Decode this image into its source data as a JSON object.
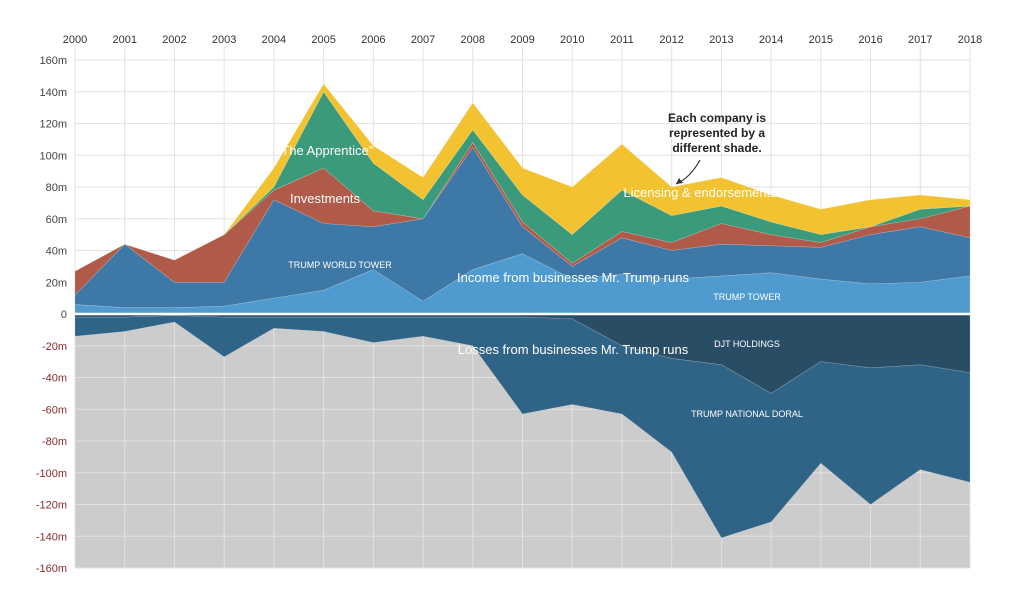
{
  "chart_data": {
    "type": "area",
    "categories": [
      "2000",
      "2001",
      "2002",
      "2003",
      "2004",
      "2005",
      "2006",
      "2007",
      "2008",
      "2009",
      "2010",
      "2011",
      "2012",
      "2013",
      "2014",
      "2015",
      "2016",
      "2017",
      "2018"
    ],
    "ylim": [
      -160,
      160
    ],
    "yticks": [
      {
        "value": 160,
        "label": "160m"
      },
      {
        "value": 140,
        "label": "140m"
      },
      {
        "value": 120,
        "label": "120m"
      },
      {
        "value": 100,
        "label": "100m"
      },
      {
        "value": 80,
        "label": "80m"
      },
      {
        "value": 60,
        "label": "60m"
      },
      {
        "value": 40,
        "label": "40m"
      },
      {
        "value": 20,
        "label": "20m"
      },
      0,
      {
        "value": -20,
        "label": "-20m"
      },
      {
        "value": -40,
        "label": "-40m"
      },
      {
        "value": -60,
        "label": "-60m"
      },
      {
        "value": -80,
        "label": "-80m"
      },
      {
        "value": -100,
        "label": "-100m"
      },
      {
        "value": -120,
        "label": "-120m"
      },
      {
        "value": -140,
        "label": "-140m"
      },
      {
        "value": -160,
        "label": "-160m"
      }
    ],
    "grid": true,
    "series": [
      {
        "name": "TRUMP TOWER",
        "color": "#4f9bcf",
        "values": [
          6,
          4,
          4,
          5,
          10,
          15,
          28,
          8,
          28,
          38,
          22,
          25,
          22,
          24,
          26,
          22,
          19,
          20,
          24
        ]
      },
      {
        "name": "TRUMP WORLD TOWER",
        "color": "#3d78a6",
        "values": [
          6,
          40,
          16,
          15,
          62,
          42,
          27,
          52,
          77,
          17,
          8,
          23,
          18,
          20,
          17,
          20,
          31,
          35,
          24
        ]
      },
      {
        "name": "Investments",
        "color": "#b05a4a",
        "values": [
          15,
          0,
          14,
          30,
          6,
          35,
          10,
          0,
          3,
          3,
          2,
          4,
          5,
          13,
          7,
          3,
          5,
          5,
          20
        ]
      },
      {
        "name": "“The Apprentice”",
        "color": "#3a9a7a",
        "values": [
          0,
          0,
          0,
          0,
          2,
          48,
          30,
          12,
          8,
          17,
          18,
          26,
          17,
          11,
          8,
          5,
          0,
          6,
          0
        ]
      },
      {
        "name": "Licensing & endorsements",
        "color": "#f2c230",
        "values": [
          0,
          0,
          0,
          0,
          12,
          5,
          11,
          14,
          17,
          17,
          30,
          29,
          18,
          18,
          17,
          16,
          17,
          9,
          4
        ]
      },
      {
        "name": "DJT HOLDINGS",
        "color": "#2a4d66",
        "values": [
          -2,
          -2,
          -1,
          -2,
          -2,
          -2,
          -2,
          -2,
          -2,
          -2,
          -3,
          -20,
          -28,
          -32,
          -50,
          -30,
          -34,
          -32,
          -37
        ]
      },
      {
        "name": "TRUMP NATIONAL DORAL",
        "color": "#2f6487",
        "values": [
          -12,
          -9,
          -4,
          -25,
          -7,
          -9,
          -16,
          -12,
          -18,
          -61,
          -54,
          -43,
          -59,
          -109,
          -81,
          -64,
          -86,
          -66,
          -69
        ]
      }
    ],
    "annotations": [
      "Income from businesses Mr. Trump runs",
      "Losses from businesses Mr. Trump runs"
    ],
    "note": [
      "Each company is",
      "represented by a",
      "different shade."
    ]
  }
}
